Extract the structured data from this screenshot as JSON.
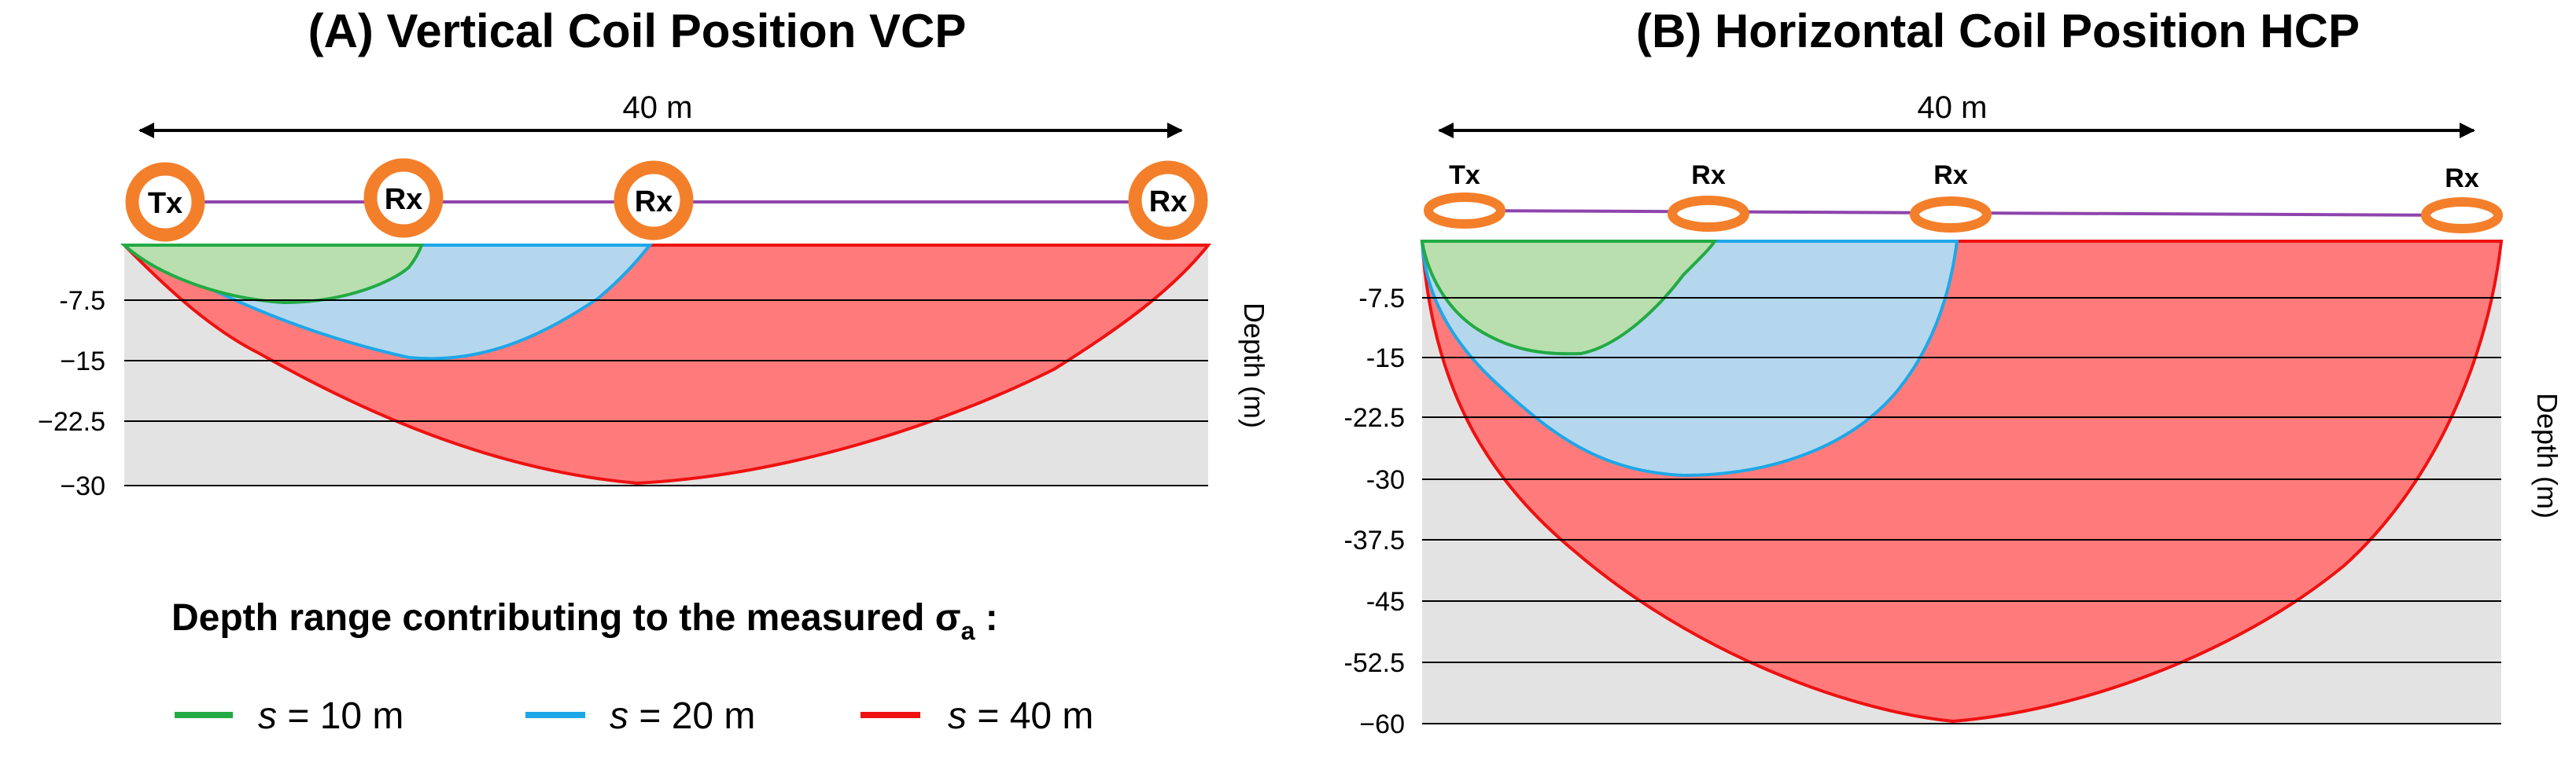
{
  "panels": [
    {
      "id": "vcp",
      "title": "(A) Vertical Coil Position VCP",
      "span_label": "40 m",
      "axis_label": "Depth (m)",
      "y_ticks": [
        "-7.5",
        "−15",
        "−22.5",
        "−30"
      ],
      "coils": [
        "Tx",
        "Rx",
        "Rx",
        "Rx"
      ]
    },
    {
      "id": "hcp",
      "title": "(B) Horizontal Coil Position HCP",
      "span_label": "40 m",
      "axis_label": "Depth (m)",
      "y_ticks": [
        "-7.5",
        "-15",
        "-22.5",
        "-30",
        "-37.5",
        "-45",
        "-52.5",
        "−60"
      ],
      "coils": [
        "Tx",
        "Rx",
        "Rx",
        "Rx"
      ]
    }
  ],
  "legend": {
    "title": "Depth range contributing to the measured σ",
    "title_subscript": "a",
    "title_suffix": " :",
    "items": [
      {
        "var": "s",
        "text": " = 10 m",
        "color": "#22aa44"
      },
      {
        "var": "s",
        "text": " = 20 m",
        "color": "#1ea7e8"
      },
      {
        "var": "s",
        "text": " = 40 m",
        "color": "#ee1111"
      }
    ]
  },
  "chart_data": [
    {
      "type": "area",
      "title": "(A) Vertical Coil Position VCP",
      "xlabel": "40 m",
      "ylabel": "Depth (m)",
      "xlim": [
        0,
        40
      ],
      "ylim": [
        -30,
        0
      ],
      "series": [
        {
          "name": "s = 10 m",
          "color": "#22aa44",
          "x": [
            0,
            5,
            10
          ],
          "depth": [
            0,
            -7.5,
            0
          ]
        },
        {
          "name": "s = 20 m",
          "color": "#1ea7e8",
          "x": [
            0,
            10,
            20
          ],
          "depth": [
            0,
            -15,
            0
          ]
        },
        {
          "name": "s = 40 m",
          "color": "#ee1111",
          "x": [
            0,
            20,
            40
          ],
          "depth": [
            0,
            -30,
            0
          ]
        }
      ]
    },
    {
      "type": "area",
      "title": "(B) Horizontal Coil Position HCP",
      "xlabel": "40 m",
      "ylabel": "Depth (m)",
      "xlim": [
        0,
        40
      ],
      "ylim": [
        -60,
        0
      ],
      "series": [
        {
          "name": "s = 10 m",
          "color": "#22aa44",
          "x": [
            0,
            5,
            10
          ],
          "depth": [
            0,
            -15,
            0
          ]
        },
        {
          "name": "s = 20 m",
          "color": "#1ea7e8",
          "x": [
            0,
            10,
            20
          ],
          "depth": [
            0,
            -30,
            0
          ]
        },
        {
          "name": "s = 40 m",
          "color": "#ee1111",
          "x": [
            0,
            20,
            40
          ],
          "depth": [
            0,
            -60,
            0
          ]
        }
      ]
    }
  ],
  "colors": {
    "green_fill": "#b9dfae",
    "blue_fill": "#b4d7ee",
    "red_fill": "#ff7b7b",
    "ground": "#e3e3e3",
    "coil": "#f47f2a",
    "cable": "#8e44ad"
  }
}
